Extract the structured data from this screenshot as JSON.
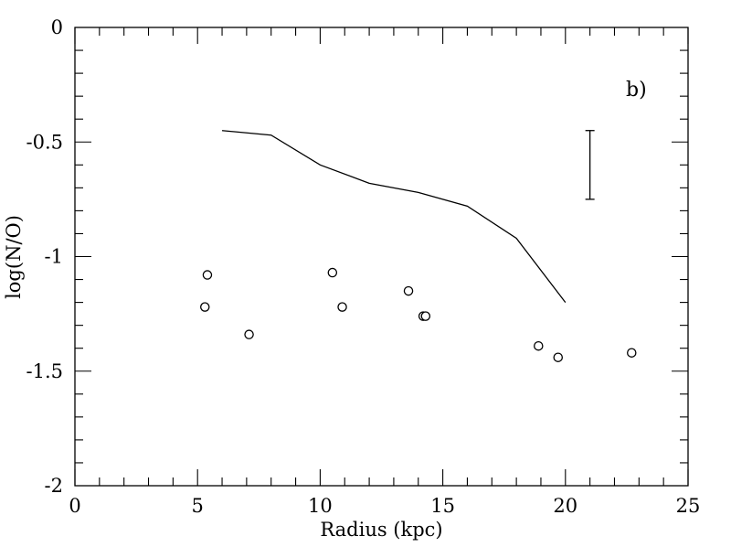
{
  "chart_data": {
    "type": "scatter",
    "title": "",
    "panel_label": "b)",
    "xlabel": "Radius (kpc)",
    "ylabel": "log(N/O)",
    "xlim": [
      0,
      25
    ],
    "ylim": [
      -2,
      0
    ],
    "x_major_ticks": [
      0,
      5,
      10,
      15,
      20,
      25
    ],
    "x_tick_labels": [
      "0",
      "5",
      "10",
      "15",
      "20",
      "25"
    ],
    "x_minor_step": 1,
    "y_major_ticks": [
      0,
      -0.5,
      -1,
      -1.5,
      -2
    ],
    "y_tick_labels": [
      "0",
      "-0.5",
      "-1",
      "-1.5",
      "-2"
    ],
    "y_minor_step": 0.1,
    "grid": false,
    "series": [
      {
        "type": "line",
        "x": [
          6,
          8,
          10,
          12,
          14,
          16,
          18,
          20
        ],
        "y": [
          -0.45,
          -0.47,
          -0.6,
          -0.68,
          -0.72,
          -0.78,
          -0.92,
          -1.2
        ]
      },
      {
        "type": "scatter",
        "marker": "open-circle",
        "x": [
          5.3,
          5.4,
          7.1,
          10.5,
          10.9,
          13.6,
          14.2,
          14.3,
          18.9,
          19.7,
          22.7
        ],
        "y": [
          -1.22,
          -1.08,
          -1.34,
          -1.07,
          -1.22,
          -1.15,
          -1.26,
          -1.26,
          -1.39,
          -1.44,
          -1.42
        ]
      }
    ],
    "error_bar": {
      "x": 21,
      "y_low": -0.75,
      "y_high": -0.45
    }
  }
}
